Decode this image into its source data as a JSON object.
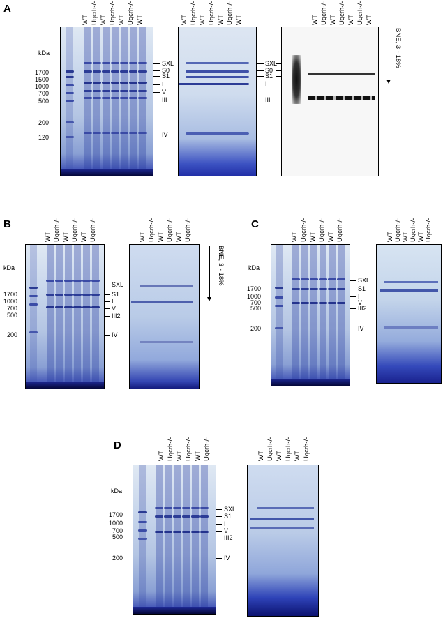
{
  "panels": {
    "A": "A",
    "B": "B",
    "C": "C",
    "D": "D"
  },
  "lane_labels": [
    "WT",
    "Uqcrh-/-",
    "WT",
    "Uqcrh-/-",
    "WT",
    "Uqcrh-/-",
    "WT"
  ],
  "lane_labels_6": [
    "WT",
    "Uqcrh-/-",
    "WT",
    "Uqcrh-/-",
    "WT",
    "Uqcrh-/-"
  ],
  "kda": "kDa",
  "markers_A": [
    "1700",
    "1500",
    "1000",
    "700",
    "500",
    "200",
    "120"
  ],
  "markers_B": [
    "1700",
    "1000",
    "700",
    "500",
    "200"
  ],
  "markers_C": [
    "1700",
    "1000",
    "700",
    "500",
    "200"
  ],
  "markers_D": [
    "1700",
    "1000",
    "700",
    "500",
    "200"
  ],
  "complexes_A1": [
    "SXL",
    "S0",
    "S1",
    "I",
    "V",
    "III",
    "IV"
  ],
  "complexes_A2": [
    "SXL",
    "S0",
    "S1",
    "I",
    "III"
  ],
  "complexes_B": [
    "SXL",
    "S1",
    "I",
    "V",
    "III2",
    "IV"
  ],
  "complexes_C": [
    "SXL",
    "S1",
    "I",
    "V",
    "III2",
    "IV"
  ],
  "complexes_D": [
    "SXL",
    "S1",
    "I",
    "V",
    "III2",
    "IV"
  ],
  "bne": "BNE, 3 - 18%"
}
